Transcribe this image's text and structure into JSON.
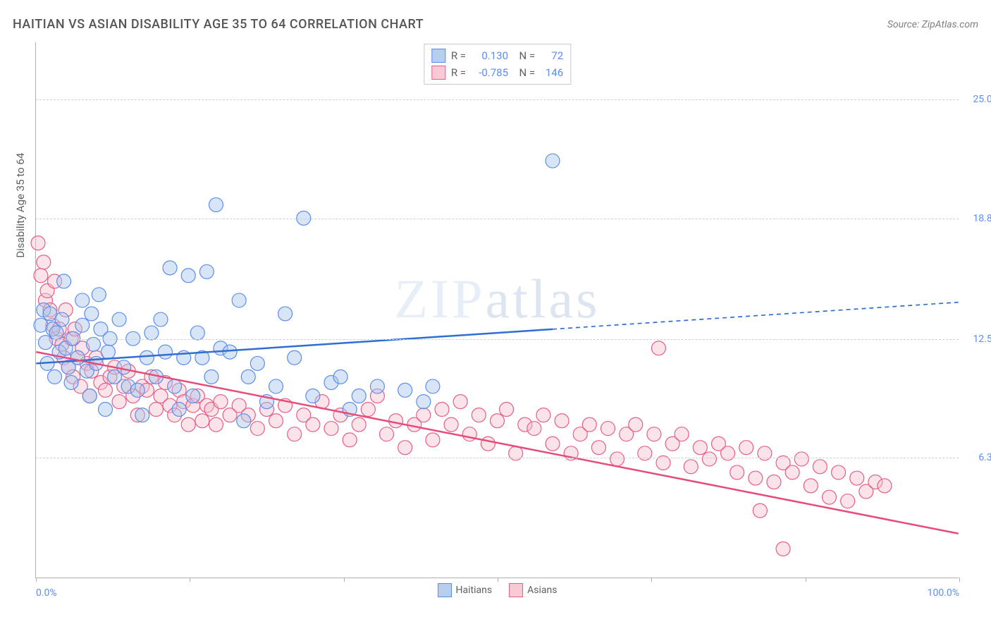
{
  "chart": {
    "type": "scatter",
    "title": "HAITIAN VS ASIAN DISABILITY AGE 35 TO 64 CORRELATION CHART",
    "source": "Source: ZipAtlas.com",
    "y_axis_title": "Disability Age 35 to 64",
    "watermark": "ZIPatlas",
    "background_color": "#ffffff",
    "grid_color": "#d0d0d0",
    "axis_color": "#b0b0b0",
    "tick_label_color": "#5b8def",
    "title_color": "#555555",
    "title_fontsize": 18,
    "label_fontsize": 14,
    "xlim": [
      0,
      100
    ],
    "ylim": [
      0,
      28
    ],
    "x_ticks": [
      0,
      16.67,
      33.33,
      50,
      66.67,
      83.33,
      100
    ],
    "x_tick_labels_shown": {
      "0": "0.0%",
      "100": "100.0%"
    },
    "y_ticks": [
      6.3,
      12.5,
      18.8,
      25.0
    ],
    "y_tick_labels": [
      "6.3%",
      "12.5%",
      "18.8%",
      "25.0%"
    ],
    "marker_radius": 10,
    "marker_stroke_width": 1.2,
    "marker_fill_opacity": 0.45,
    "line_width": 2.5,
    "dash_pattern": "6 5",
    "series": [
      {
        "name": "Haitians",
        "color_fill": "#a8c6ea",
        "color_stroke": "#5b8def",
        "line_color": "#2f6fd1",
        "R": "0.130",
        "N": "72",
        "trend": {
          "x1": 0,
          "y1": 11.2,
          "x2": 100,
          "y2": 14.4,
          "solid_until_x": 56
        },
        "points": [
          [
            0.5,
            13.2
          ],
          [
            0.8,
            14.0
          ],
          [
            1.0,
            12.3
          ],
          [
            1.2,
            11.2
          ],
          [
            1.5,
            13.8
          ],
          [
            1.8,
            13.0
          ],
          [
            2.0,
            10.5
          ],
          [
            2.2,
            12.8
          ],
          [
            2.5,
            11.8
          ],
          [
            2.8,
            13.5
          ],
          [
            3.0,
            15.5
          ],
          [
            3.2,
            12.0
          ],
          [
            3.5,
            11.0
          ],
          [
            3.8,
            10.2
          ],
          [
            4.0,
            12.5
          ],
          [
            4.5,
            11.5
          ],
          [
            5.0,
            13.2
          ],
          [
            5.0,
            14.5
          ],
          [
            5.5,
            10.8
          ],
          [
            5.8,
            9.5
          ],
          [
            6.0,
            13.8
          ],
          [
            6.2,
            12.2
          ],
          [
            6.5,
            11.2
          ],
          [
            6.8,
            14.8
          ],
          [
            7.0,
            13.0
          ],
          [
            7.5,
            8.8
          ],
          [
            7.8,
            11.8
          ],
          [
            8.0,
            12.5
          ],
          [
            8.5,
            10.5
          ],
          [
            9.0,
            13.5
          ],
          [
            9.5,
            11.0
          ],
          [
            10.0,
            10.0
          ],
          [
            10.5,
            12.5
          ],
          [
            11.0,
            9.8
          ],
          [
            11.5,
            8.5
          ],
          [
            12.0,
            11.5
          ],
          [
            12.5,
            12.8
          ],
          [
            13.0,
            10.5
          ],
          [
            13.5,
            13.5
          ],
          [
            14.0,
            11.8
          ],
          [
            14.5,
            16.2
          ],
          [
            15.0,
            10.0
          ],
          [
            15.5,
            8.8
          ],
          [
            16.0,
            11.5
          ],
          [
            16.5,
            15.8
          ],
          [
            17.0,
            9.5
          ],
          [
            17.5,
            12.8
          ],
          [
            18.0,
            11.5
          ],
          [
            18.5,
            16.0
          ],
          [
            19.0,
            10.5
          ],
          [
            19.5,
            19.5
          ],
          [
            20.0,
            12.0
          ],
          [
            21.0,
            11.8
          ],
          [
            22.0,
            14.5
          ],
          [
            22.5,
            8.2
          ],
          [
            23.0,
            10.5
          ],
          [
            24.0,
            11.2
          ],
          [
            25.0,
            9.2
          ],
          [
            26.0,
            10.0
          ],
          [
            27.0,
            13.8
          ],
          [
            28.0,
            11.5
          ],
          [
            29.0,
            18.8
          ],
          [
            30.0,
            9.5
          ],
          [
            32.0,
            10.2
          ],
          [
            33.0,
            10.5
          ],
          [
            34.0,
            8.8
          ],
          [
            35.0,
            9.5
          ],
          [
            37.0,
            10.0
          ],
          [
            40.0,
            9.8
          ],
          [
            42.0,
            9.2
          ],
          [
            43.0,
            10.0
          ],
          [
            56.0,
            21.8
          ]
        ]
      },
      {
        "name": "Asians",
        "color_fill": "#f5c0cf",
        "color_stroke": "#e85d87",
        "line_color": "#e74b7a",
        "R": "-0.785",
        "N": "146",
        "trend": {
          "x1": 0,
          "y1": 11.8,
          "x2": 100,
          "y2": 2.3,
          "solid_until_x": 100
        },
        "points": [
          [
            0.2,
            17.5
          ],
          [
            0.5,
            15.8
          ],
          [
            0.8,
            16.5
          ],
          [
            1.0,
            14.5
          ],
          [
            1.2,
            15.0
          ],
          [
            1.5,
            14.0
          ],
          [
            1.8,
            13.2
          ],
          [
            2.0,
            15.5
          ],
          [
            2.2,
            12.5
          ],
          [
            2.5,
            13.0
          ],
          [
            2.8,
            12.2
          ],
          [
            3.0,
            11.5
          ],
          [
            3.2,
            14.0
          ],
          [
            3.5,
            11.0
          ],
          [
            3.8,
            12.5
          ],
          [
            4.0,
            10.5
          ],
          [
            4.2,
            13.0
          ],
          [
            4.5,
            11.5
          ],
          [
            4.8,
            10.0
          ],
          [
            5.0,
            12.0
          ],
          [
            5.5,
            11.2
          ],
          [
            5.8,
            9.5
          ],
          [
            6.0,
            10.8
          ],
          [
            6.5,
            11.5
          ],
          [
            7.0,
            10.2
          ],
          [
            7.5,
            9.8
          ],
          [
            8.0,
            10.5
          ],
          [
            8.5,
            11.0
          ],
          [
            9.0,
            9.2
          ],
          [
            9.5,
            10.0
          ],
          [
            10.0,
            10.8
          ],
          [
            10.5,
            9.5
          ],
          [
            11.0,
            8.5
          ],
          [
            11.5,
            10.0
          ],
          [
            12.0,
            9.8
          ],
          [
            12.5,
            10.5
          ],
          [
            13.0,
            8.8
          ],
          [
            13.5,
            9.5
          ],
          [
            14.0,
            10.2
          ],
          [
            14.5,
            9.0
          ],
          [
            15.0,
            8.5
          ],
          [
            15.5,
            9.8
          ],
          [
            16.0,
            9.2
          ],
          [
            16.5,
            8.0
          ],
          [
            17.0,
            9.0
          ],
          [
            17.5,
            9.5
          ],
          [
            18.0,
            8.2
          ],
          [
            18.5,
            9.0
          ],
          [
            19.0,
            8.8
          ],
          [
            19.5,
            8.0
          ],
          [
            20.0,
            9.2
          ],
          [
            21.0,
            8.5
          ],
          [
            22.0,
            9.0
          ],
          [
            23.0,
            8.5
          ],
          [
            24.0,
            7.8
          ],
          [
            25.0,
            8.8
          ],
          [
            26.0,
            8.2
          ],
          [
            27.0,
            9.0
          ],
          [
            28.0,
            7.5
          ],
          [
            29.0,
            8.5
          ],
          [
            30.0,
            8.0
          ],
          [
            31.0,
            9.2
          ],
          [
            32.0,
            7.8
          ],
          [
            33.0,
            8.5
          ],
          [
            34.0,
            7.2
          ],
          [
            35.0,
            8.0
          ],
          [
            36.0,
            8.8
          ],
          [
            37.0,
            9.5
          ],
          [
            38.0,
            7.5
          ],
          [
            39.0,
            8.2
          ],
          [
            40.0,
            6.8
          ],
          [
            41.0,
            8.0
          ],
          [
            42.0,
            8.5
          ],
          [
            43.0,
            7.2
          ],
          [
            44.0,
            8.8
          ],
          [
            45.0,
            8.0
          ],
          [
            46.0,
            9.2
          ],
          [
            47.0,
            7.5
          ],
          [
            48.0,
            8.5
          ],
          [
            49.0,
            7.0
          ],
          [
            50.0,
            8.2
          ],
          [
            51.0,
            8.8
          ],
          [
            52.0,
            6.5
          ],
          [
            53.0,
            8.0
          ],
          [
            54.0,
            7.8
          ],
          [
            55.0,
            8.5
          ],
          [
            56.0,
            7.0
          ],
          [
            57.0,
            8.2
          ],
          [
            58.0,
            6.5
          ],
          [
            59.0,
            7.5
          ],
          [
            60.0,
            8.0
          ],
          [
            61.0,
            6.8
          ],
          [
            62.0,
            7.8
          ],
          [
            63.0,
            6.2
          ],
          [
            64.0,
            7.5
          ],
          [
            65.0,
            8.0
          ],
          [
            66.0,
            6.5
          ],
          [
            67.0,
            7.5
          ],
          [
            67.5,
            12.0
          ],
          [
            68.0,
            6.0
          ],
          [
            69.0,
            7.0
          ],
          [
            70.0,
            7.5
          ],
          [
            71.0,
            5.8
          ],
          [
            72.0,
            6.8
          ],
          [
            73.0,
            6.2
          ],
          [
            74.0,
            7.0
          ],
          [
            75.0,
            6.5
          ],
          [
            76.0,
            5.5
          ],
          [
            77.0,
            6.8
          ],
          [
            78.0,
            5.2
          ],
          [
            78.5,
            3.5
          ],
          [
            79.0,
            6.5
          ],
          [
            80.0,
            5.0
          ],
          [
            81.0,
            6.0
          ],
          [
            82.0,
            5.5
          ],
          [
            83.0,
            6.2
          ],
          [
            84.0,
            4.8
          ],
          [
            85.0,
            5.8
          ],
          [
            86.0,
            4.2
          ],
          [
            87.0,
            5.5
          ],
          [
            88.0,
            4.0
          ],
          [
            89.0,
            5.2
          ],
          [
            90.0,
            4.5
          ],
          [
            81.0,
            1.5
          ],
          [
            91.0,
            5.0
          ],
          [
            92.0,
            4.8
          ]
        ]
      }
    ],
    "legend_bottom": [
      {
        "swatch": "blue",
        "label": "Haitians"
      },
      {
        "swatch": "pink",
        "label": "Asians"
      }
    ]
  }
}
